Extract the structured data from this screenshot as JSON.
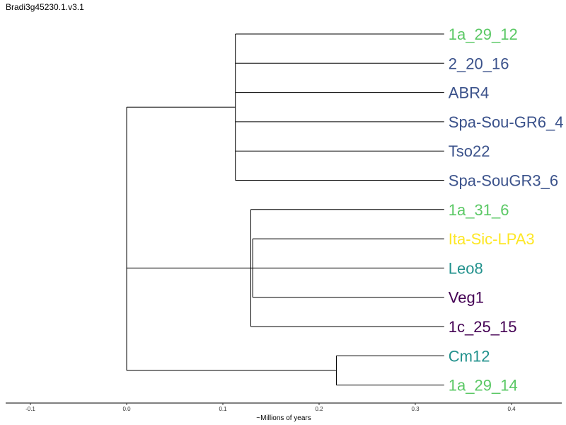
{
  "title": "Bradi3g45230.1.v3.1",
  "axis": {
    "label": "~Millions of years",
    "ticks": [
      -0.1,
      0.0,
      0.1,
      0.2,
      0.3,
      0.4
    ],
    "tick_labels": [
      "-0.1",
      "0.0",
      "0.1",
      "0.2",
      "0.3",
      "0.4"
    ],
    "range": [
      -0.125,
      0.45
    ]
  },
  "colors": {
    "green": "#5ac864",
    "blue": "#3b528b",
    "teal": "#21918c",
    "yellow": "#fde725",
    "purple": "#440154"
  },
  "tips": [
    {
      "label": "1a_29_12",
      "color": "#5ac864"
    },
    {
      "label": "2_20_16",
      "color": "#3b528b"
    },
    {
      "label": "ABR4",
      "color": "#3b528b"
    },
    {
      "label": "Spa-Sou-GR6_4",
      "color": "#3b528b"
    },
    {
      "label": "Tso22",
      "color": "#3b528b"
    },
    {
      "label": "Spa-SouGR3_6",
      "color": "#3b528b"
    },
    {
      "label": "1a_31_6",
      "color": "#5ac864"
    },
    {
      "label": "Ita-Sic-LPA3",
      "color": "#fde725"
    },
    {
      "label": "Leo8",
      "color": "#21918c"
    },
    {
      "label": "Veg1",
      "color": "#440154"
    },
    {
      "label": "1c_25_15",
      "color": "#440154"
    },
    {
      "label": "Cm12",
      "color": "#21918c"
    },
    {
      "label": "1a_29_14",
      "color": "#5ac864"
    }
  ],
  "tree": {
    "x": 0.0,
    "children": [
      {
        "x": 0.0,
        "children": [
          {
            "x": 0.113,
            "children": [
              {
                "tip": 0,
                "x": 0.33
              },
              {
                "tip": 1,
                "x": 0.33
              },
              {
                "tip": 2,
                "x": 0.33
              },
              {
                "tip": 3,
                "x": 0.33
              },
              {
                "tip": 4,
                "x": 0.33
              },
              {
                "tip": 5,
                "x": 0.33
              }
            ]
          },
          {
            "x": 0.129,
            "children": [
              {
                "tip": 6,
                "x": 0.33
              },
              {
                "x": 0.131,
                "children": [
                  {
                    "tip": 7,
                    "x": 0.33
                  },
                  {
                    "tip": 8,
                    "x": 0.33
                  },
                  {
                    "tip": 9,
                    "x": 0.33
                  }
                ]
              },
              {
                "tip": 10,
                "x": 0.33
              }
            ]
          }
        ]
      },
      {
        "x": 0.218,
        "children": [
          {
            "tip": 11,
            "x": 0.33
          },
          {
            "tip": 12,
            "x": 0.33
          }
        ]
      }
    ]
  }
}
